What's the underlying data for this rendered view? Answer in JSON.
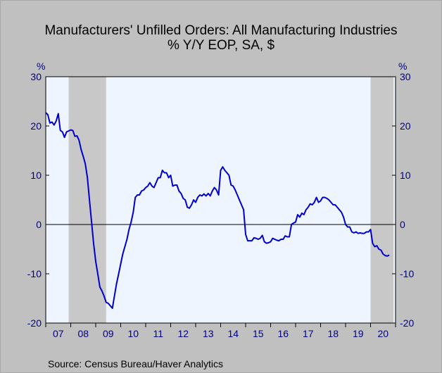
{
  "chart_data": {
    "type": "line",
    "title": "Manufacturers' Unfilled Orders: All Manufacturing Industries",
    "subtitle": "% Y/Y   EOP, SA, $",
    "left_unit": "%",
    "right_unit": "%",
    "source": "Source:  Census Bureau/Haver Analytics",
    "ylim": [
      -20,
      30
    ],
    "yticks": [
      30,
      20,
      10,
      0,
      -10,
      -20
    ],
    "ytick_labels": [
      "30",
      "20",
      "10",
      "0",
      "-10",
      "-20"
    ],
    "xlim": [
      2007.0,
      2021.0
    ],
    "x_tick_labels": [
      "07",
      "08",
      "09",
      "10",
      "11",
      "12",
      "13",
      "14",
      "15",
      "16",
      "17",
      "18",
      "19",
      "20"
    ],
    "recessions": [
      [
        2007.917,
        2009.417
      ],
      [
        2020.0,
        2020.917
      ]
    ],
    "colors": {
      "line": "#0000cc",
      "plot_bg": "#eef5ff",
      "recession": "#c8c8c8",
      "axis_text": "#000080"
    },
    "series": [
      {
        "values": [
          [
            2007.0,
            22.7
          ],
          [
            2007.083,
            22.3
          ],
          [
            2007.167,
            20.6
          ],
          [
            2007.25,
            20.8
          ],
          [
            2007.333,
            20.2
          ],
          [
            2007.417,
            21.0
          ],
          [
            2007.5,
            22.5
          ],
          [
            2007.583,
            19.1
          ],
          [
            2007.667,
            18.8
          ],
          [
            2007.75,
            17.7
          ],
          [
            2007.833,
            18.8
          ],
          [
            2007.917,
            19.0
          ],
          [
            2008.0,
            19.2
          ],
          [
            2008.083,
            19.1
          ],
          [
            2008.167,
            17.9
          ],
          [
            2008.25,
            18.0
          ],
          [
            2008.333,
            17.1
          ],
          [
            2008.417,
            15.2
          ],
          [
            2008.5,
            13.8
          ],
          [
            2008.583,
            12.3
          ],
          [
            2008.667,
            9.5
          ],
          [
            2008.75,
            5.0
          ],
          [
            2008.833,
            0.5
          ],
          [
            2008.917,
            -4.0
          ],
          [
            2009.0,
            -7.5
          ],
          [
            2009.083,
            -10.0
          ],
          [
            2009.167,
            -12.7
          ],
          [
            2009.25,
            -13.5
          ],
          [
            2009.333,
            -14.5
          ],
          [
            2009.417,
            -15.8
          ],
          [
            2009.5,
            -16.0
          ],
          [
            2009.583,
            -16.5
          ],
          [
            2009.667,
            -17.0
          ],
          [
            2009.75,
            -14.5
          ],
          [
            2009.833,
            -12.0
          ],
          [
            2009.917,
            -10.0
          ],
          [
            2010.0,
            -8.0
          ],
          [
            2010.083,
            -6.0
          ],
          [
            2010.167,
            -4.5
          ],
          [
            2010.25,
            -3.0
          ],
          [
            2010.333,
            -1.0
          ],
          [
            2010.417,
            0.5
          ],
          [
            2010.5,
            2.5
          ],
          [
            2010.583,
            5.5
          ],
          [
            2010.667,
            6.0
          ],
          [
            2010.75,
            6.0
          ],
          [
            2010.833,
            6.8
          ],
          [
            2010.917,
            7.0
          ],
          [
            2011.0,
            7.5
          ],
          [
            2011.083,
            7.8
          ],
          [
            2011.167,
            8.5
          ],
          [
            2011.25,
            7.8
          ],
          [
            2011.333,
            7.5
          ],
          [
            2011.417,
            8.5
          ],
          [
            2011.5,
            9.5
          ],
          [
            2011.583,
            9.5
          ],
          [
            2011.667,
            11.0
          ],
          [
            2011.75,
            10.5
          ],
          [
            2011.833,
            10.5
          ],
          [
            2011.917,
            9.5
          ],
          [
            2012.0,
            10.0
          ],
          [
            2012.083,
            7.8
          ],
          [
            2012.167,
            8.0
          ],
          [
            2012.25,
            8.0
          ],
          [
            2012.333,
            6.8
          ],
          [
            2012.417,
            6.3
          ],
          [
            2012.5,
            5.3
          ],
          [
            2012.583,
            5.0
          ],
          [
            2012.667,
            3.5
          ],
          [
            2012.75,
            3.3
          ],
          [
            2012.833,
            4.0
          ],
          [
            2012.917,
            5.0
          ],
          [
            2013.0,
            4.5
          ],
          [
            2013.083,
            5.5
          ],
          [
            2013.167,
            6.0
          ],
          [
            2013.25,
            5.8
          ],
          [
            2013.333,
            6.2
          ],
          [
            2013.417,
            5.8
          ],
          [
            2013.5,
            6.3
          ],
          [
            2013.583,
            5.8
          ],
          [
            2013.667,
            6.8
          ],
          [
            2013.75,
            7.5
          ],
          [
            2013.833,
            7.0
          ],
          [
            2013.917,
            6.0
          ],
          [
            2014.0,
            11.0
          ],
          [
            2014.083,
            11.7
          ],
          [
            2014.167,
            11.0
          ],
          [
            2014.25,
            10.5
          ],
          [
            2014.333,
            10.0
          ],
          [
            2014.417,
            8.0
          ],
          [
            2014.5,
            7.8
          ],
          [
            2014.583,
            7.0
          ],
          [
            2014.667,
            6.0
          ],
          [
            2014.75,
            5.0
          ],
          [
            2014.833,
            4.0
          ],
          [
            2014.917,
            3.0
          ],
          [
            2015.0,
            -2.0
          ],
          [
            2015.083,
            -3.3
          ],
          [
            2015.167,
            -3.3
          ],
          [
            2015.25,
            -3.3
          ],
          [
            2015.333,
            -2.7
          ],
          [
            2015.417,
            -2.8
          ],
          [
            2015.5,
            -3.0
          ],
          [
            2015.583,
            -2.8
          ],
          [
            2015.667,
            -2.2
          ],
          [
            2015.75,
            -3.5
          ],
          [
            2015.833,
            -3.8
          ],
          [
            2015.917,
            -3.7
          ],
          [
            2016.0,
            -3.5
          ],
          [
            2016.083,
            -2.8
          ],
          [
            2016.167,
            -3.0
          ],
          [
            2016.25,
            -3.2
          ],
          [
            2016.333,
            -3.3
          ],
          [
            2016.417,
            -3.0
          ],
          [
            2016.5,
            -3.0
          ],
          [
            2016.583,
            -2.3
          ],
          [
            2016.667,
            -2.5
          ],
          [
            2016.75,
            -2.5
          ],
          [
            2016.833,
            0.0
          ],
          [
            2016.917,
            0.3
          ],
          [
            2017.0,
            0.5
          ],
          [
            2017.083,
            2.0
          ],
          [
            2017.167,
            1.5
          ],
          [
            2017.25,
            2.3
          ],
          [
            2017.333,
            2.0
          ],
          [
            2017.417,
            3.0
          ],
          [
            2017.5,
            3.5
          ],
          [
            2017.583,
            4.2
          ],
          [
            2017.667,
            4.0
          ],
          [
            2017.75,
            4.5
          ],
          [
            2017.833,
            5.5
          ],
          [
            2017.917,
            4.5
          ],
          [
            2018.0,
            4.8
          ],
          [
            2018.083,
            5.5
          ],
          [
            2018.167,
            5.5
          ],
          [
            2018.25,
            5.3
          ],
          [
            2018.333,
            5.0
          ],
          [
            2018.417,
            4.5
          ],
          [
            2018.5,
            4.0
          ],
          [
            2018.583,
            4.0
          ],
          [
            2018.667,
            3.5
          ],
          [
            2018.75,
            3.0
          ],
          [
            2018.833,
            2.5
          ],
          [
            2018.917,
            1.5
          ],
          [
            2019.0,
            0.0
          ],
          [
            2019.083,
            -0.5
          ],
          [
            2019.167,
            -0.5
          ],
          [
            2019.25,
            -1.5
          ],
          [
            2019.333,
            -1.7
          ],
          [
            2019.417,
            -1.5
          ],
          [
            2019.5,
            -1.8
          ],
          [
            2019.583,
            -1.7
          ],
          [
            2019.667,
            -1.8
          ],
          [
            2019.75,
            -1.8
          ],
          [
            2019.833,
            -1.5
          ],
          [
            2019.917,
            -1.5
          ],
          [
            2020.0,
            -1.0
          ],
          [
            2020.083,
            -3.8
          ],
          [
            2020.167,
            -4.5
          ],
          [
            2020.25,
            -4.3
          ],
          [
            2020.333,
            -5.0
          ],
          [
            2020.417,
            -5.2
          ],
          [
            2020.5,
            -6.0
          ],
          [
            2020.583,
            -6.3
          ],
          [
            2020.667,
            -6.4
          ],
          [
            2020.75,
            -6.2
          ]
        ]
      }
    ]
  }
}
